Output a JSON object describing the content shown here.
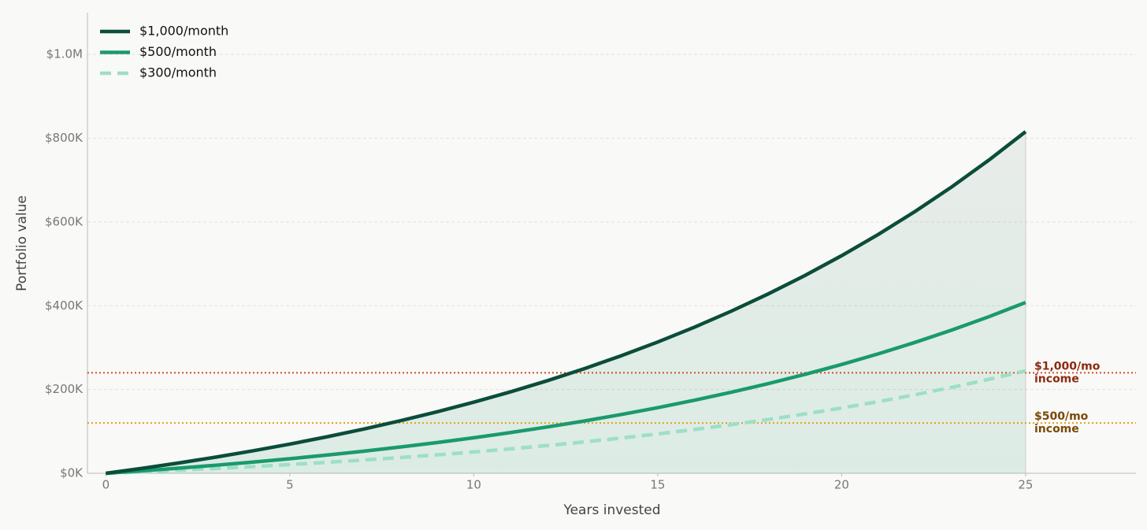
{
  "chart_data": {
    "type": "line",
    "x_label": "Years invested",
    "y_label": "Portfolio value",
    "x": [
      0,
      1,
      2,
      3,
      4,
      5,
      6,
      7,
      8,
      9,
      10,
      11,
      12,
      13,
      14,
      15,
      16,
      17,
      18,
      19,
      20,
      21,
      22,
      23,
      24,
      25
    ],
    "series": [
      {
        "name": "$1,000/month",
        "color": "#0b4d3a",
        "dash": false,
        "fill": true,
        "values": [
          0,
          12000,
          24900,
          38768,
          53675,
          69701,
          86928,
          105448,
          125356,
          146758,
          169765,
          194497,
          221085,
          249666,
          280391,
          313420,
          348927,
          387096,
          428129,
          472238,
          519656,
          570630,
          625428,
          684335,
          747660,
          815734
        ]
      },
      {
        "name": "$500/month",
        "color": "#1a9a6c",
        "dash": false,
        "fill": false,
        "values": [
          0,
          6000,
          12450,
          19384,
          26838,
          34851,
          43464,
          52724,
          62678,
          73379,
          84883,
          97249,
          110543,
          124833,
          140196,
          156710,
          174464,
          193548,
          214065,
          236119,
          259828,
          285315,
          312714,
          342168,
          373830,
          407867
        ]
      },
      {
        "name": "$300/month",
        "color": "#9ddfc6",
        "dash": true,
        "fill": false,
        "values": [
          0,
          3600,
          7470,
          11630,
          16103,
          20910,
          26078,
          31634,
          37607,
          44027,
          50930,
          58349,
          66326,
          74900,
          84117,
          94026,
          104678,
          116129,
          128439,
          141671,
          155897,
          171189,
          187628,
          205301,
          224298,
          244720
        ]
      }
    ],
    "reference_lines": [
      {
        "value": 240000,
        "color": "#d24d2a",
        "label_color": "#8b2a10",
        "label": [
          "$1,000/mo",
          "income"
        ]
      },
      {
        "value": 120000,
        "color": "#e0a020",
        "label_color": "#7a4a08",
        "label": [
          "$500/mo",
          "income"
        ]
      }
    ],
    "xlim": [
      -0.5,
      28
    ],
    "ylim": [
      0,
      1100000
    ],
    "xticks": [
      0,
      5,
      10,
      15,
      20,
      25
    ],
    "yticks": [
      {
        "value": 0,
        "label": "$0K"
      },
      {
        "value": 200000,
        "label": "$200K"
      },
      {
        "value": 400000,
        "label": "$400K"
      },
      {
        "value": 600000,
        "label": "$600K"
      },
      {
        "value": 800000,
        "label": "$800K"
      },
      {
        "value": 1000000,
        "label": "$1.0M"
      }
    ],
    "grid": true,
    "legend": "upper-left"
  }
}
